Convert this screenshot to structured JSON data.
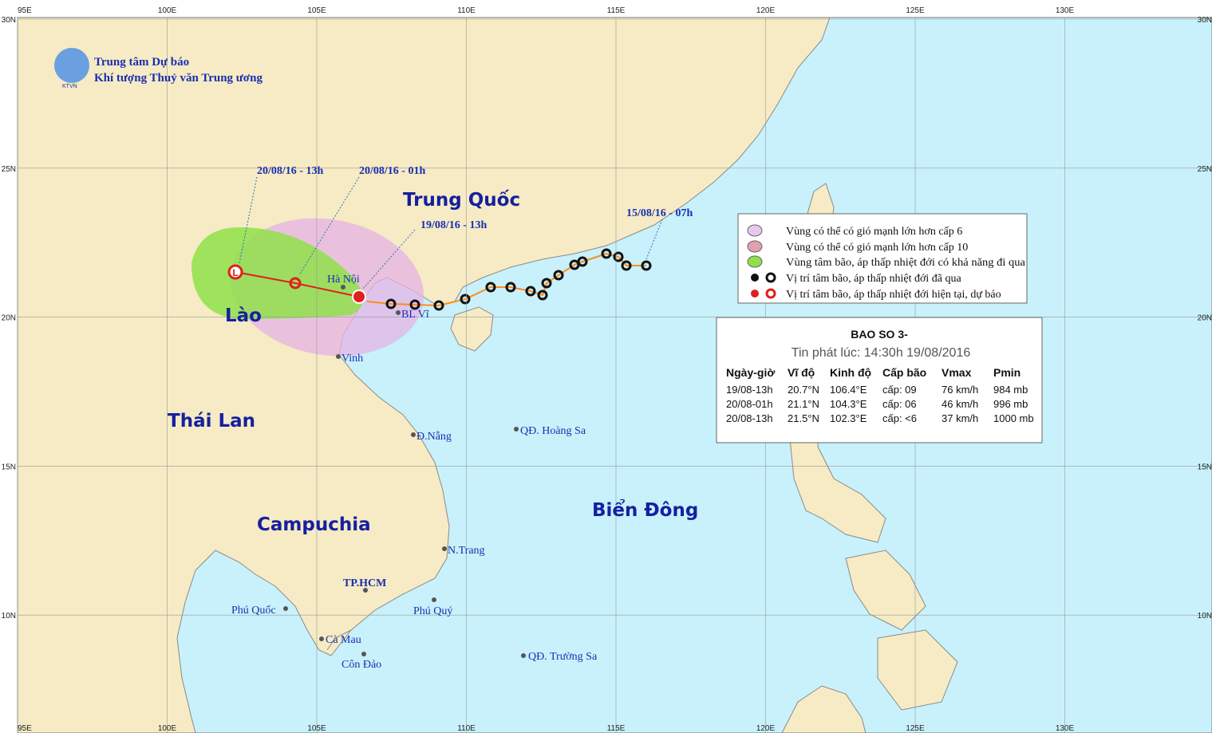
{
  "header": {
    "org_line1": "Trung tâm Dự báo",
    "org_line2": "Khí tượng Thuỷ văn Trung ương",
    "logo_text": "KTVN"
  },
  "axes": {
    "lon": [
      "95E",
      "100E",
      "105E",
      "110E",
      "115E",
      "120E",
      "125E",
      "130E"
    ],
    "lat": [
      "30N",
      "25N",
      "20N",
      "15N",
      "10N"
    ]
  },
  "countries": [
    "Trung Quốc",
    "Lào",
    "Thái Lan",
    "Campuchia",
    "Biển Đông"
  ],
  "places": [
    "Hà Nội",
    "BL Vĩ",
    "Vinh",
    "Đ.Nẵng",
    "QĐ. Hoàng Sa",
    "N.Trang",
    "TP.HCM",
    "Phú Quốc",
    "Phú Quý",
    "Cà Mau",
    "Côn Đảo",
    "QĐ. Trường Sa"
  ],
  "track_labels": [
    "20/08/16 - 13h",
    "20/08/16 - 01h",
    "19/08/16 - 13h",
    "15/08/16 - 07h"
  ],
  "forecast_marker": "L",
  "legend": [
    "Vùng có thể có gió mạnh lớn hơn cấp 6",
    "Vùng có thể có gió mạnh lớn hơn cấp 10",
    "Vùng tâm bão, áp thấp nhiệt đới có khả năng đi qua",
    "Vị trí tâm bão, áp thấp nhiệt đới đã qua",
    "Vị trí tâm bão, áp thấp nhiệt đới hiện tại, dự báo"
  ],
  "bulletin": {
    "title": "BAO SO 3-",
    "issued": "Tin phát lúc: 14:30h 19/08/2016",
    "columns": [
      "Ngày-giờ",
      "Vĩ độ",
      "Kinh độ",
      "Cấp bão",
      "Vmax",
      "Pmin"
    ],
    "rows": [
      [
        "19/08-13h",
        "20.7°N",
        "106.4°E",
        "cấp: 09",
        "76 km/h",
        "984 mb"
      ],
      [
        "20/08-01h",
        "21.1°N",
        "104.3°E",
        "cấp: 06",
        "46 km/h",
        "996 mb"
      ],
      [
        "20/08-13h",
        "21.5°N",
        "102.3°E",
        "cấp: <6",
        "37 km/h",
        "1000 mb"
      ]
    ]
  }
}
